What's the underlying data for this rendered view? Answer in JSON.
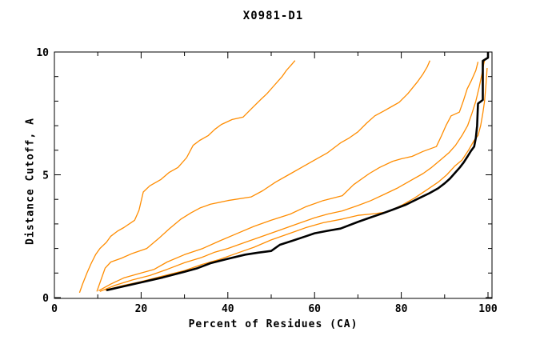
{
  "window": {
    "background": "#ffffff"
  },
  "chart": {
    "title": "X0981-D1",
    "xlabel": "Percent of Residues (CA)",
    "ylabel": "Distance Cutoff, A"
  },
  "chart_data": {
    "type": "line",
    "title": "X0981-D1",
    "xlabel": "Percent of Residues (CA)",
    "ylabel": "Distance Cutoff, A",
    "xlim": [
      0,
      100
    ],
    "ylim": [
      0,
      10
    ],
    "grid": false,
    "legend": "none",
    "frame": "box-with-inward-ticks",
    "x_major_ticks": [
      0,
      20,
      40,
      60,
      80,
      100
    ],
    "x_major_tick_labels": [
      "0",
      "20",
      "40",
      "60",
      "80",
      "100"
    ],
    "x_minor_ticks": [
      10,
      30,
      50,
      70,
      90
    ],
    "y_major_ticks": [
      0,
      5,
      10
    ],
    "y_major_tick_labels": [
      "0",
      "5",
      "10"
    ],
    "y_minor_ticks": [
      1,
      2,
      3,
      4,
      6,
      7,
      8,
      9
    ],
    "colors": {
      "model_curve": "#000000",
      "other_curves": "#ff8c00",
      "frame": "#000000"
    },
    "series": [
      {
        "name": "orange-curve-1",
        "color": "#ff8c00",
        "width": 1.3,
        "points": [
          [
            5.8,
            0.2
          ],
          [
            6.5,
            0.55
          ],
          [
            7.5,
            1.0
          ],
          [
            8.5,
            1.4
          ],
          [
            9.5,
            1.75
          ],
          [
            10.5,
            2.0
          ],
          [
            12,
            2.25
          ],
          [
            13,
            2.5
          ],
          [
            14.5,
            2.7
          ],
          [
            16,
            2.85
          ],
          [
            18.5,
            3.15
          ],
          [
            19.5,
            3.55
          ],
          [
            20.5,
            4.3
          ],
          [
            22,
            4.55
          ],
          [
            24.5,
            4.8
          ],
          [
            26.5,
            5.1
          ],
          [
            28.5,
            5.3
          ],
          [
            30.5,
            5.7
          ],
          [
            32,
            6.2
          ],
          [
            33.5,
            6.4
          ],
          [
            35.5,
            6.6
          ],
          [
            37,
            6.85
          ],
          [
            38.5,
            7.05
          ],
          [
            41,
            7.25
          ],
          [
            43.5,
            7.35
          ],
          [
            45.5,
            7.7
          ],
          [
            47.5,
            8.05
          ],
          [
            49,
            8.3
          ],
          [
            50.5,
            8.6
          ],
          [
            52.5,
            9.0
          ],
          [
            53.5,
            9.25
          ],
          [
            54.5,
            9.45
          ],
          [
            55.5,
            9.65
          ]
        ]
      },
      {
        "name": "orange-curve-2",
        "color": "#ff8c00",
        "width": 1.3,
        "points": [
          [
            9.8,
            0.25
          ],
          [
            10.8,
            0.75
          ],
          [
            11.7,
            1.2
          ],
          [
            13,
            1.45
          ],
          [
            15.4,
            1.6
          ],
          [
            18,
            1.8
          ],
          [
            21.3,
            2.0
          ],
          [
            24,
            2.4
          ],
          [
            26.5,
            2.8
          ],
          [
            29.2,
            3.2
          ],
          [
            31.5,
            3.45
          ],
          [
            33.6,
            3.65
          ],
          [
            36,
            3.8
          ],
          [
            40,
            3.95
          ],
          [
            45.4,
            4.1
          ],
          [
            48,
            4.35
          ],
          [
            51,
            4.7
          ],
          [
            54,
            5.0
          ],
          [
            57,
            5.3
          ],
          [
            60,
            5.6
          ],
          [
            63,
            5.9
          ],
          [
            66,
            6.3
          ],
          [
            68,
            6.5
          ],
          [
            70,
            6.75
          ],
          [
            72,
            7.1
          ],
          [
            73.9,
            7.4
          ],
          [
            76,
            7.6
          ],
          [
            78,
            7.8
          ],
          [
            79.5,
            7.95
          ],
          [
            81.5,
            8.3
          ],
          [
            83.8,
            8.8
          ],
          [
            85,
            9.1
          ],
          [
            86,
            9.4
          ],
          [
            86.6,
            9.65
          ]
        ]
      },
      {
        "name": "orange-curve-3",
        "color": "#ff8c00",
        "width": 1.3,
        "points": [
          [
            10.2,
            0.28
          ],
          [
            13,
            0.55
          ],
          [
            16,
            0.8
          ],
          [
            20,
            1.0
          ],
          [
            23,
            1.15
          ],
          [
            26,
            1.45
          ],
          [
            30,
            1.75
          ],
          [
            34.2,
            2.0
          ],
          [
            38,
            2.3
          ],
          [
            42,
            2.6
          ],
          [
            46,
            2.9
          ],
          [
            50,
            3.15
          ],
          [
            54.4,
            3.4
          ],
          [
            58,
            3.7
          ],
          [
            62,
            3.95
          ],
          [
            66.4,
            4.15
          ],
          [
            69,
            4.6
          ],
          [
            72.6,
            5.05
          ],
          [
            75,
            5.3
          ],
          [
            78,
            5.55
          ],
          [
            80,
            5.65
          ],
          [
            82.5,
            5.75
          ],
          [
            85,
            5.95
          ],
          [
            88.1,
            6.15
          ],
          [
            89.3,
            6.6
          ],
          [
            90.3,
            7.0
          ],
          [
            91.5,
            7.4
          ],
          [
            93.4,
            7.55
          ],
          [
            94.3,
            8.0
          ],
          [
            95.2,
            8.5
          ],
          [
            96.2,
            8.85
          ],
          [
            97.2,
            9.25
          ],
          [
            97.7,
            9.6
          ]
        ]
      },
      {
        "name": "orange-curve-4",
        "color": "#ff8c00",
        "width": 1.3,
        "points": [
          [
            10.5,
            0.25
          ],
          [
            14,
            0.5
          ],
          [
            18,
            0.72
          ],
          [
            22,
            0.9
          ],
          [
            26,
            1.15
          ],
          [
            30,
            1.42
          ],
          [
            34,
            1.64
          ],
          [
            37,
            1.85
          ],
          [
            40,
            2.0
          ],
          [
            44,
            2.25
          ],
          [
            48,
            2.5
          ],
          [
            52,
            2.75
          ],
          [
            56,
            3.0
          ],
          [
            60,
            3.25
          ],
          [
            63,
            3.4
          ],
          [
            66.4,
            3.53
          ],
          [
            70,
            3.75
          ],
          [
            73,
            3.95
          ],
          [
            76,
            4.2
          ],
          [
            79,
            4.45
          ],
          [
            82,
            4.75
          ],
          [
            85,
            5.05
          ],
          [
            87,
            5.3
          ],
          [
            89,
            5.6
          ],
          [
            91,
            5.9
          ],
          [
            92.5,
            6.2
          ],
          [
            94,
            6.6
          ],
          [
            95.3,
            7.0
          ],
          [
            96.3,
            7.5
          ],
          [
            97.2,
            8.0
          ],
          [
            98,
            8.6
          ],
          [
            98.6,
            9.1
          ],
          [
            99,
            9.5
          ],
          [
            99.2,
            9.65
          ]
        ]
      },
      {
        "name": "orange-curve-5",
        "color": "#ff8c00",
        "width": 1.3,
        "points": [
          [
            11.7,
            0.3
          ],
          [
            16,
            0.5
          ],
          [
            20,
            0.65
          ],
          [
            25,
            0.88
          ],
          [
            30,
            1.1
          ],
          [
            34,
            1.35
          ],
          [
            38,
            1.55
          ],
          [
            42,
            1.8
          ],
          [
            46,
            2.05
          ],
          [
            50,
            2.35
          ],
          [
            54,
            2.6
          ],
          [
            58,
            2.85
          ],
          [
            62,
            3.05
          ],
          [
            66.4,
            3.2
          ],
          [
            70,
            3.35
          ],
          [
            74,
            3.42
          ],
          [
            77,
            3.5
          ],
          [
            80,
            3.75
          ],
          [
            83,
            4.05
          ],
          [
            86,
            4.4
          ],
          [
            88.5,
            4.7
          ],
          [
            90.5,
            5.0
          ],
          [
            92.3,
            5.35
          ],
          [
            94,
            5.6
          ],
          [
            95.5,
            6.0
          ],
          [
            96.8,
            6.4
          ],
          [
            97.7,
            6.6
          ],
          [
            98.3,
            7.0
          ],
          [
            98.8,
            7.5
          ],
          [
            99.2,
            8.0
          ],
          [
            99.5,
            8.6
          ],
          [
            99.7,
            9.1
          ],
          [
            99.8,
            9.35
          ]
        ]
      },
      {
        "name": "black-model-curve",
        "color": "#000000",
        "width": 2.6,
        "points": [
          [
            12,
            0.3
          ],
          [
            15,
            0.42
          ],
          [
            20,
            0.62
          ],
          [
            25,
            0.82
          ],
          [
            30,
            1.05
          ],
          [
            33,
            1.2
          ],
          [
            36,
            1.4
          ],
          [
            40,
            1.58
          ],
          [
            44,
            1.75
          ],
          [
            47,
            1.83
          ],
          [
            50,
            1.9
          ],
          [
            52,
            2.15
          ],
          [
            55,
            2.32
          ],
          [
            58,
            2.5
          ],
          [
            60,
            2.62
          ],
          [
            63,
            2.72
          ],
          [
            66,
            2.81
          ],
          [
            70,
            3.08
          ],
          [
            73,
            3.27
          ],
          [
            75.7,
            3.43
          ],
          [
            78,
            3.58
          ],
          [
            81,
            3.78
          ],
          [
            84.5,
            4.08
          ],
          [
            86.5,
            4.25
          ],
          [
            88.5,
            4.45
          ],
          [
            90,
            4.65
          ],
          [
            91.2,
            4.84
          ],
          [
            92.5,
            5.1
          ],
          [
            93.5,
            5.3
          ],
          [
            94.4,
            5.5
          ],
          [
            95.3,
            5.75
          ],
          [
            96,
            5.95
          ],
          [
            96.8,
            6.15
          ],
          [
            97.2,
            6.5
          ],
          [
            97.5,
            7.0
          ],
          [
            97.6,
            7.5
          ],
          [
            97.7,
            7.9
          ],
          [
            98.8,
            8.05
          ],
          [
            98.8,
            9.64
          ],
          [
            100,
            9.77
          ],
          [
            100,
            10.0
          ]
        ]
      }
    ]
  }
}
